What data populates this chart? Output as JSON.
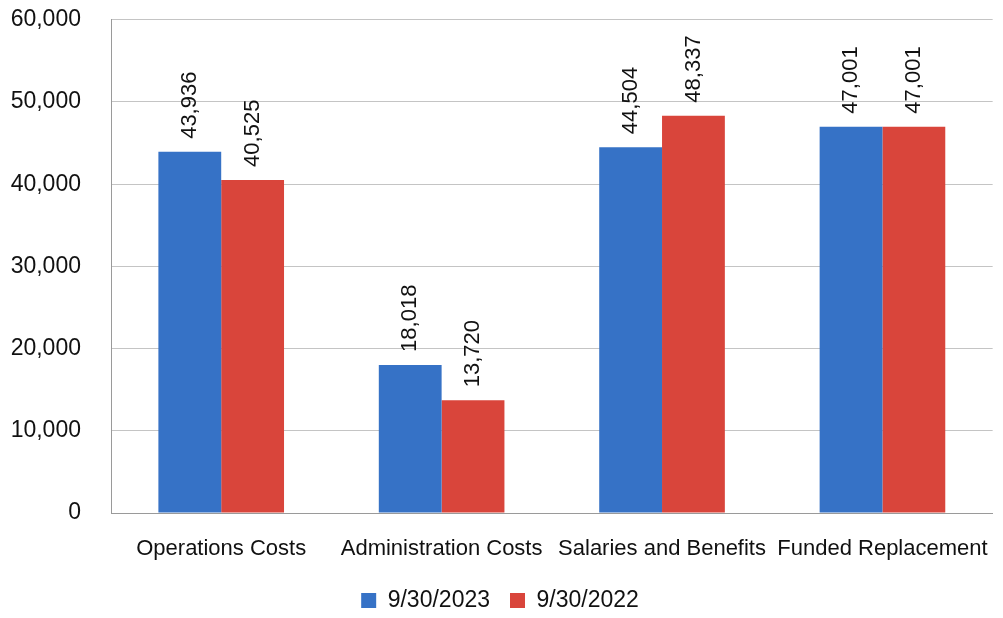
{
  "chart_data": {
    "type": "bar",
    "categories": [
      "Operations Costs",
      "Administration Costs",
      "Salaries and Benefits",
      "Funded Replacement"
    ],
    "series": [
      {
        "name": "9/30/2023",
        "color": "#3672c6",
        "values": [
          43936,
          18018,
          44504,
          47001
        ],
        "value_labels": [
          "43,936",
          "18,018",
          "44,504",
          "47,001"
        ]
      },
      {
        "name": "9/30/2022",
        "color": "#d9453b",
        "values": [
          40525,
          13720,
          48337,
          47001
        ],
        "value_labels": [
          "40,525",
          "13,720",
          "48,337",
          "47,001"
        ]
      }
    ],
    "ylim": [
      0,
      60000
    ],
    "yticks": [
      {
        "value": 0,
        "label": "0"
      },
      {
        "value": 10000,
        "label": "10,000"
      },
      {
        "value": 20000,
        "label": "20,000"
      },
      {
        "value": 30000,
        "label": "30,000"
      },
      {
        "value": 40000,
        "label": "40,000"
      },
      {
        "value": 50000,
        "label": "50,000"
      },
      {
        "value": 60000,
        "label": "60,000"
      }
    ],
    "grid": "y",
    "legend": "bottom"
  }
}
